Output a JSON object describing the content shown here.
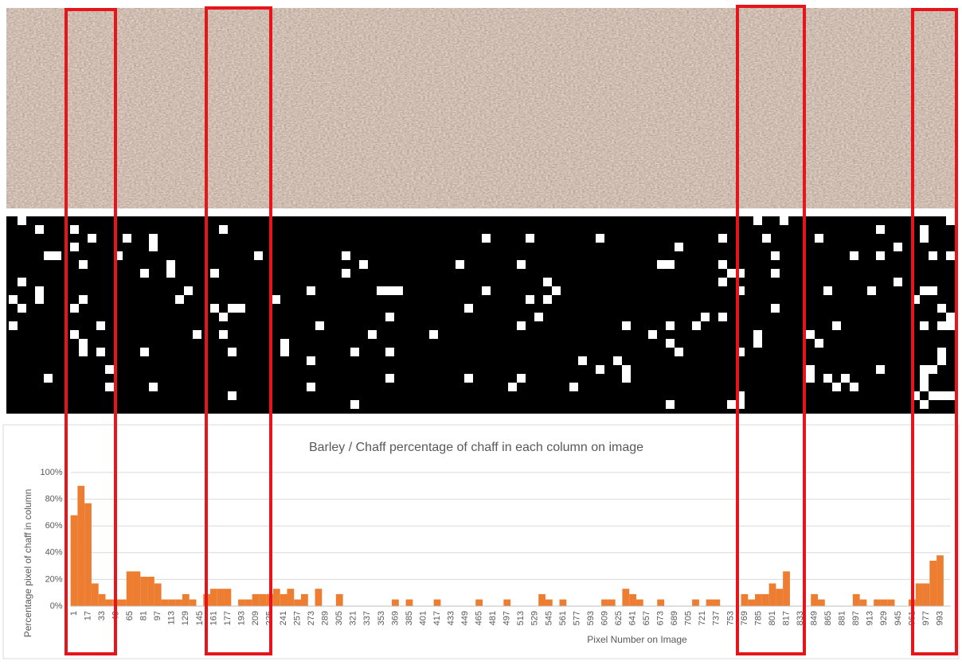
{
  "chart_data": {
    "type": "bar",
    "title": "Barley / Chaff percentage of chaff in each column on image",
    "x_label": "Pixel Number on Image",
    "y_label": "Percentage pixel of chaff in column",
    "color": "#ed7d31",
    "grid": true,
    "ylim": [
      0,
      100
    ],
    "yticks": [
      {
        "value": 0,
        "label": "0%"
      },
      {
        "value": 20,
        "label": "20%"
      },
      {
        "value": 40,
        "label": "40%"
      },
      {
        "value": 60,
        "label": "60%"
      },
      {
        "value": 80,
        "label": "80%"
      },
      {
        "value": 100,
        "label": "100%"
      }
    ],
    "categories": [
      1,
      null,
      17,
      null,
      33,
      null,
      49,
      null,
      65,
      null,
      81,
      null,
      97,
      null,
      113,
      null,
      129,
      null,
      145,
      null,
      161,
      null,
      177,
      null,
      193,
      null,
      209,
      null,
      225,
      null,
      241,
      null,
      257,
      null,
      273,
      null,
      289,
      null,
      305,
      null,
      321,
      null,
      337,
      null,
      353,
      null,
      369,
      null,
      385,
      null,
      401,
      null,
      417,
      null,
      433,
      null,
      449,
      null,
      465,
      null,
      481,
      null,
      497,
      null,
      513,
      null,
      529,
      null,
      545,
      null,
      561,
      null,
      577,
      null,
      593,
      null,
      609,
      null,
      625,
      null,
      641,
      null,
      657,
      null,
      673,
      null,
      689,
      null,
      705,
      null,
      721,
      null,
      737,
      null,
      753,
      null,
      769,
      null,
      785,
      null,
      801,
      null,
      817,
      null,
      833,
      null,
      849,
      null,
      865,
      null,
      881,
      null,
      897,
      null,
      913,
      null,
      929,
      null,
      945,
      null,
      961,
      null,
      977,
      null,
      993,
      null
    ],
    "values": [
      68,
      90,
      77,
      17,
      9,
      5,
      5,
      5,
      26,
      26,
      22,
      22,
      17,
      5,
      5,
      5,
      9,
      5,
      0,
      9,
      13,
      13,
      13,
      0,
      5,
      5,
      9,
      9,
      9,
      13,
      9,
      13,
      5,
      9,
      0,
      13,
      0,
      0,
      9,
      0,
      0,
      0,
      0,
      0,
      0,
      0,
      5,
      0,
      5,
      0,
      0,
      0,
      5,
      0,
      0,
      0,
      0,
      0,
      5,
      0,
      0,
      0,
      5,
      0,
      0,
      0,
      0,
      9,
      5,
      0,
      5,
      0,
      0,
      0,
      0,
      0,
      5,
      5,
      0,
      13,
      9,
      5,
      0,
      0,
      5,
      0,
      0,
      0,
      0,
      5,
      0,
      5,
      5,
      0,
      0,
      0,
      9,
      5,
      9,
      9,
      17,
      13,
      26,
      0,
      0,
      0,
      9,
      5,
      0,
      0,
      0,
      0,
      9,
      5,
      0,
      5,
      5,
      5,
      0,
      0,
      5,
      17,
      17,
      34,
      38,
      0
    ]
  }
}
